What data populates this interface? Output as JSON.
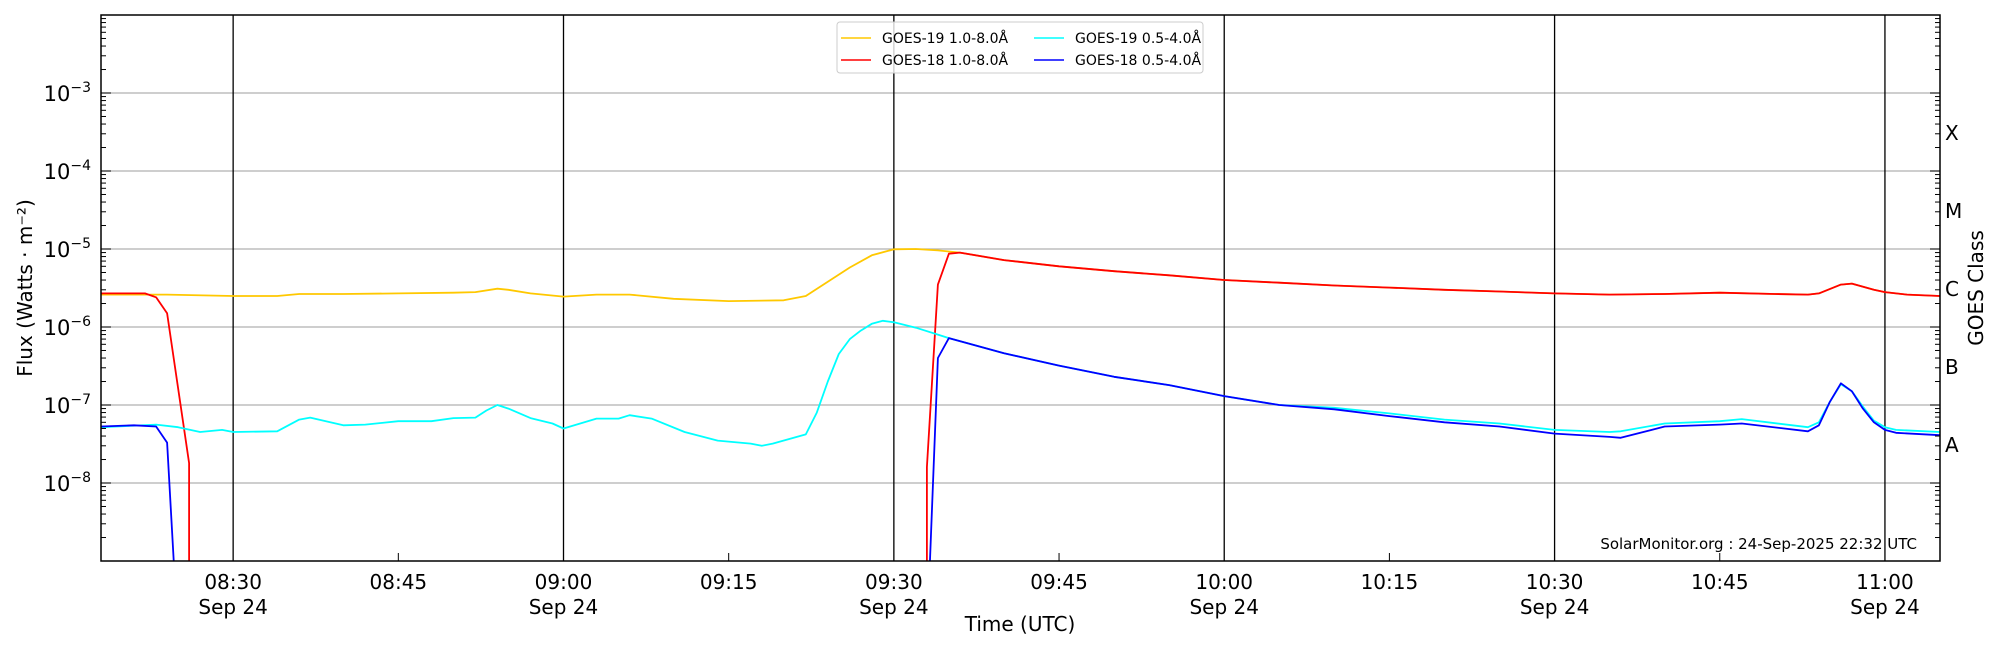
{
  "chart_data": {
    "type": "line",
    "title": "",
    "xlabel": "Time (UTC)",
    "ylabel": "Flux (Watts · m⁻²)",
    "ylabel_right": "GOES Class",
    "yscale": "log",
    "ylim": [
      1e-09,
      0.01
    ],
    "xlim": [
      "08:18",
      "11:05"
    ],
    "grid": "horizontal at decades; vertical lines at half hours",
    "legend_placement": "top-center",
    "x_ticks": [
      {
        "time": "08:30",
        "label": "08:30",
        "date": "Sep 24"
      },
      {
        "time": "08:45",
        "label": "08:45",
        "date": ""
      },
      {
        "time": "09:00",
        "label": "09:00",
        "date": "Sep 24"
      },
      {
        "time": "09:15",
        "label": "09:15",
        "date": ""
      },
      {
        "time": "09:30",
        "label": "09:30",
        "date": "Sep 24"
      },
      {
        "time": "09:45",
        "label": "09:45",
        "date": ""
      },
      {
        "time": "10:00",
        "label": "10:00",
        "date": "Sep 24"
      },
      {
        "time": "10:15",
        "label": "10:15",
        "date": ""
      },
      {
        "time": "10:30",
        "label": "10:30",
        "date": "Sep 24"
      },
      {
        "time": "10:45",
        "label": "10:45",
        "date": ""
      },
      {
        "time": "11:00",
        "label": "11:00",
        "date": "Sep 24"
      }
    ],
    "y_ticks": [
      {
        "exp": -3,
        "base": "10",
        "sup": "−3"
      },
      {
        "exp": -4,
        "base": "10",
        "sup": "−4"
      },
      {
        "exp": -5,
        "base": "10",
        "sup": "−5"
      },
      {
        "exp": -6,
        "base": "10",
        "sup": "−6"
      },
      {
        "exp": -7,
        "base": "10",
        "sup": "−7"
      },
      {
        "exp": -8,
        "base": "10",
        "sup": "−8"
      }
    ],
    "goes_classes": [
      {
        "label": "X",
        "exp": -3.5
      },
      {
        "label": "M",
        "exp": -4.5
      },
      {
        "label": "C",
        "exp": -5.5
      },
      {
        "label": "B",
        "exp": -6.5
      },
      {
        "label": "A",
        "exp": -7.5
      }
    ],
    "series": [
      {
        "name": "GOES-19 1.0-8.0Å",
        "color": "#ffc800",
        "points": [
          [
            "08:18",
            2.6e-06
          ],
          [
            "08:24",
            2.6e-06
          ],
          [
            "08:30",
            2.5e-06
          ],
          [
            "08:34",
            2.5e-06
          ],
          [
            "08:36",
            2.65e-06
          ],
          [
            "08:40",
            2.65e-06
          ],
          [
            "08:45",
            2.7e-06
          ],
          [
            "08:50",
            2.75e-06
          ],
          [
            "08:52",
            2.8e-06
          ],
          [
            "08:54",
            3.1e-06
          ],
          [
            "08:55",
            3e-06
          ],
          [
            "08:57",
            2.7e-06
          ],
          [
            "09:00",
            2.45e-06
          ],
          [
            "09:03",
            2.6e-06
          ],
          [
            "09:06",
            2.6e-06
          ],
          [
            "09:10",
            2.3e-06
          ],
          [
            "09:15",
            2.15e-06
          ],
          [
            "09:20",
            2.2e-06
          ],
          [
            "09:22",
            2.5e-06
          ],
          [
            "09:24",
            3.8e-06
          ],
          [
            "09:26",
            5.8e-06
          ],
          [
            "09:28",
            8.3e-06
          ],
          [
            "09:30",
            9.9e-06
          ],
          [
            "09:32",
            1e-05
          ],
          [
            "09:34",
            9.6e-06
          ],
          [
            "09:36",
            9e-06
          ],
          [
            "09:40",
            7.2e-06
          ],
          [
            "09:45",
            6e-06
          ],
          [
            "09:50",
            5.2e-06
          ],
          [
            "09:55",
            4.6e-06
          ],
          [
            "10:00",
            4e-06
          ],
          [
            "10:05",
            3.7e-06
          ],
          [
            "10:10",
            3.4e-06
          ],
          [
            "10:15",
            3.2e-06
          ],
          [
            "10:20",
            3e-06
          ],
          [
            "10:25",
            2.85e-06
          ],
          [
            "10:30",
            2.7e-06
          ],
          [
            "10:35",
            2.6e-06
          ],
          [
            "10:40",
            2.65e-06
          ],
          [
            "10:45",
            2.75e-06
          ],
          [
            "10:50",
            2.65e-06
          ],
          [
            "10:53",
            2.6e-06
          ],
          [
            "10:54",
            2.7e-06
          ],
          [
            "10:56",
            3.5e-06
          ],
          [
            "10:57",
            3.6e-06
          ],
          [
            "10:59",
            3e-06
          ],
          [
            "11:00",
            2.8e-06
          ],
          [
            "11:02",
            2.6e-06
          ],
          [
            "11:05",
            2.5e-06
          ]
        ]
      },
      {
        "name": "GOES-18 1.0-8.0Å",
        "color": "#ff0000",
        "points": [
          [
            "08:18",
            2.7e-06
          ],
          [
            "08:22",
            2.7e-06
          ],
          [
            "08:23",
            2.4e-06
          ],
          [
            "08:24",
            1.5e-06
          ],
          [
            "08:26",
            1.8e-08
          ],
          [
            "08:26",
            1e-10
          ],
          null,
          [
            "09:33",
            1e-10
          ],
          [
            "09:33",
            1.6e-08
          ],
          [
            "09:34",
            3.5e-06
          ],
          [
            "09:35",
            8.7e-06
          ],
          [
            "09:36",
            9e-06
          ],
          [
            "09:40",
            7.2e-06
          ],
          [
            "09:45",
            6e-06
          ],
          [
            "09:50",
            5.2e-06
          ],
          [
            "09:55",
            4.6e-06
          ],
          [
            "10:00",
            4e-06
          ],
          [
            "10:05",
            3.7e-06
          ],
          [
            "10:10",
            3.4e-06
          ],
          [
            "10:15",
            3.2e-06
          ],
          [
            "10:20",
            3e-06
          ],
          [
            "10:25",
            2.85e-06
          ],
          [
            "10:30",
            2.7e-06
          ],
          [
            "10:35",
            2.6e-06
          ],
          [
            "10:40",
            2.65e-06
          ],
          [
            "10:45",
            2.75e-06
          ],
          [
            "10:50",
            2.65e-06
          ],
          [
            "10:53",
            2.6e-06
          ],
          [
            "10:54",
            2.7e-06
          ],
          [
            "10:56",
            3.5e-06
          ],
          [
            "10:57",
            3.6e-06
          ],
          [
            "10:59",
            3e-06
          ],
          [
            "11:00",
            2.8e-06
          ],
          [
            "11:02",
            2.6e-06
          ],
          [
            "11:05",
            2.5e-06
          ]
        ]
      },
      {
        "name": "GOES-19 0.5-4.0Å",
        "color": "#00ffff",
        "points": [
          [
            "08:18",
            5.2e-08
          ],
          [
            "08:23",
            5.6e-08
          ],
          [
            "08:25",
            5.2e-08
          ],
          [
            "08:27",
            4.5e-08
          ],
          [
            "08:29",
            4.8e-08
          ],
          [
            "08:30",
            4.5e-08
          ],
          [
            "08:34",
            4.6e-08
          ],
          [
            "08:36",
            6.5e-08
          ],
          [
            "08:37",
            6.9e-08
          ],
          [
            "08:40",
            5.5e-08
          ],
          [
            "08:42",
            5.6e-08
          ],
          [
            "08:45",
            6.2e-08
          ],
          [
            "08:48",
            6.2e-08
          ],
          [
            "08:50",
            6.8e-08
          ],
          [
            "08:52",
            6.9e-08
          ],
          [
            "08:53",
            8.5e-08
          ],
          [
            "08:54",
            1e-07
          ],
          [
            "08:55",
            9e-08
          ],
          [
            "08:57",
            6.8e-08
          ],
          [
            "08:59",
            5.8e-08
          ],
          [
            "09:00",
            5e-08
          ],
          [
            "09:03",
            6.7e-08
          ],
          [
            "09:05",
            6.7e-08
          ],
          [
            "09:06",
            7.4e-08
          ],
          [
            "09:08",
            6.7e-08
          ],
          [
            "09:11",
            4.5e-08
          ],
          [
            "09:14",
            3.5e-08
          ],
          [
            "09:17",
            3.2e-08
          ],
          [
            "09:18",
            3e-08
          ],
          [
            "09:19",
            3.2e-08
          ],
          [
            "09:22",
            4.2e-08
          ],
          [
            "09:23",
            8e-08
          ],
          [
            "09:24",
            2e-07
          ],
          [
            "09:25",
            4.5e-07
          ],
          [
            "09:26",
            7e-07
          ],
          [
            "09:27",
            9e-07
          ],
          [
            "09:28",
            1.1e-06
          ],
          [
            "09:29",
            1.2e-06
          ],
          [
            "09:30",
            1.15e-06
          ],
          [
            "09:32",
            9.8e-07
          ],
          [
            "09:34",
            8e-07
          ],
          [
            "09:35",
            7.2e-07
          ],
          [
            "09:40",
            4.6e-07
          ],
          [
            "09:45",
            3.2e-07
          ],
          [
            "09:50",
            2.3e-07
          ],
          [
            "09:55",
            1.8e-07
          ],
          [
            "10:00",
            1.3e-07
          ],
          [
            "10:05",
            1e-07
          ],
          [
            "10:10",
            9.2e-08
          ],
          [
            "10:15",
            7.8e-08
          ],
          [
            "10:20",
            6.5e-08
          ],
          [
            "10:25",
            5.8e-08
          ],
          [
            "10:30",
            4.8e-08
          ],
          [
            "10:35",
            4.5e-08
          ],
          [
            "10:36",
            4.6e-08
          ],
          [
            "10:40",
            5.8e-08
          ],
          [
            "10:45",
            6.2e-08
          ],
          [
            "10:47",
            6.6e-08
          ],
          [
            "10:53",
            5.2e-08
          ],
          [
            "10:54",
            6e-08
          ],
          [
            "10:55",
            1.1e-07
          ],
          [
            "10:56",
            1.85e-07
          ],
          [
            "10:57",
            1.5e-07
          ],
          [
            "10:58",
            9.5e-08
          ],
          [
            "10:59",
            6.3e-08
          ],
          [
            "11:00",
            5.2e-08
          ],
          [
            "11:01",
            4.8e-08
          ],
          [
            "11:05",
            4.5e-08
          ]
        ]
      },
      {
        "name": "GOES-18 0.5-4.0Å",
        "color": "#0000ff",
        "points": [
          [
            "08:18",
            5.3e-08
          ],
          [
            "08:21",
            5.5e-08
          ],
          [
            "08:23",
            5.3e-08
          ],
          [
            "08:24",
            3.3e-08
          ],
          [
            "08:25",
            1e-10
          ],
          null,
          [
            "09:33",
            1e-10
          ],
          [
            "09:34",
            4e-07
          ],
          [
            "09:35",
            7.2e-07
          ],
          [
            "09:40",
            4.6e-07
          ],
          [
            "09:45",
            3.2e-07
          ],
          [
            "09:50",
            2.3e-07
          ],
          [
            "09:55",
            1.8e-07
          ],
          [
            "10:00",
            1.3e-07
          ],
          [
            "10:05",
            1e-07
          ],
          [
            "10:10",
            8.8e-08
          ],
          [
            "10:15",
            7.2e-08
          ],
          [
            "10:20",
            6e-08
          ],
          [
            "10:25",
            5.3e-08
          ],
          [
            "10:30",
            4.3e-08
          ],
          [
            "10:35",
            3.9e-08
          ],
          [
            "10:36",
            3.8e-08
          ],
          [
            "10:40",
            5.3e-08
          ],
          [
            "10:45",
            5.6e-08
          ],
          [
            "10:47",
            5.8e-08
          ],
          [
            "10:53",
            4.6e-08
          ],
          [
            "10:54",
            5.5e-08
          ],
          [
            "10:55",
            1.1e-07
          ],
          [
            "10:56",
            1.9e-07
          ],
          [
            "10:57",
            1.5e-07
          ],
          [
            "10:58",
            9e-08
          ],
          [
            "10:59",
            6e-08
          ],
          [
            "11:00",
            4.8e-08
          ],
          [
            "11:01",
            4.4e-08
          ],
          [
            "11:05",
            4.1e-08
          ]
        ]
      }
    ],
    "legend": [
      {
        "label": "GOES-19 1.0-8.0Å",
        "color": "#ffc800"
      },
      {
        "label": "GOES-18 1.0-8.0Å",
        "color": "#ff0000"
      },
      {
        "label": "GOES-19 0.5-4.0Å",
        "color": "#00ffff"
      },
      {
        "label": "GOES-18 0.5-4.0Å",
        "color": "#0000ff"
      }
    ],
    "annotation": "SolarMonitor.org : 24-Sep-2025 22:32 UTC"
  }
}
